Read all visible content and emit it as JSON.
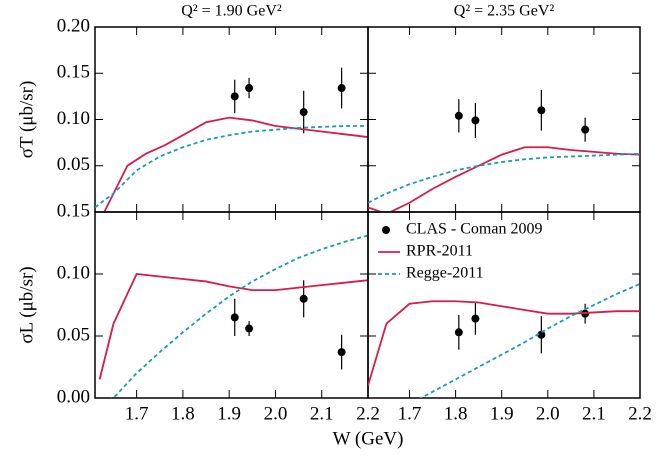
{
  "chart_data": [
    {
      "type": "line",
      "title": "Q² = 1.90 GeV²",
      "y_label": "σT (μb/sr)",
      "xlim": [
        1.61,
        2.2
      ],
      "xticks": [
        1.7,
        1.8,
        1.9,
        2.0,
        2.1,
        2.2
      ],
      "ylim": [
        0,
        0.2
      ],
      "yticks": [
        {
          "value": 0.05,
          "label": "0.05"
        },
        {
          "value": 0.1,
          "label": "0.10"
        },
        {
          "value": 0.15,
          "label": "0.15"
        },
        {
          "value": 0.2,
          "label": "0.20"
        }
      ],
      "series": [
        {
          "type": "scatter",
          "color": "#000000",
          "x": [
            1.912,
            1.943,
            2.061,
            2.143
          ],
          "values": [
            0.125,
            0.134,
            0.108,
            0.134
          ],
          "errors": [
            0.018,
            0.011,
            0.023,
            0.022
          ]
        },
        {
          "type": "line",
          "color": "#d81b4a",
          "x": [
            1.63,
            1.65,
            1.68,
            1.72,
            1.76,
            1.8,
            1.85,
            1.9,
            1.95,
            2.0,
            2.05,
            2.1,
            2.15,
            2.2
          ],
          "values": [
            0.0,
            0.02,
            0.05,
            0.063,
            0.072,
            0.083,
            0.097,
            0.102,
            0.099,
            0.093,
            0.09,
            0.087,
            0.084,
            0.081
          ]
        },
        {
          "type": "line",
          "dashed": true,
          "color": "#1a9bb0",
          "x": [
            1.61,
            1.65,
            1.7,
            1.75,
            1.8,
            1.85,
            1.9,
            1.95,
            2.0,
            2.05,
            2.1,
            2.15,
            2.2
          ],
          "values": [
            0.005,
            0.02,
            0.045,
            0.06,
            0.07,
            0.078,
            0.083,
            0.087,
            0.089,
            0.091,
            0.092,
            0.093,
            0.093
          ]
        }
      ]
    },
    {
      "type": "line",
      "title": "Q² = 2.35 GeV²",
      "xlim": [
        1.61,
        2.2
      ],
      "xticks": [
        1.7,
        1.8,
        1.9,
        2.0,
        2.1,
        2.2
      ],
      "ylim": [
        0,
        0.2
      ],
      "yticks": [
        0.05,
        0.1,
        0.15,
        0.2
      ],
      "series": [
        {
          "type": "scatter",
          "color": "#000000",
          "x": [
            1.807,
            1.843,
            1.986,
            2.081
          ],
          "values": [
            0.104,
            0.099,
            0.11,
            0.089
          ],
          "errors": [
            0.018,
            0.019,
            0.022,
            0.013
          ]
        },
        {
          "type": "line",
          "color": "#d81b4a",
          "x": [
            1.61,
            1.65,
            1.7,
            1.75,
            1.8,
            1.85,
            1.9,
            1.95,
            2.0,
            2.05,
            2.1,
            2.15,
            2.2
          ],
          "values": [
            0.005,
            -0.002,
            0.01,
            0.025,
            0.038,
            0.05,
            0.062,
            0.07,
            0.07,
            0.067,
            0.065,
            0.063,
            0.062
          ]
        },
        {
          "type": "line",
          "dashed": true,
          "color": "#1a9bb0",
          "x": [
            1.61,
            1.65,
            1.7,
            1.75,
            1.8,
            1.85,
            1.9,
            1.95,
            2.0,
            2.05,
            2.1,
            2.15,
            2.2
          ],
          "values": [
            0.01,
            0.02,
            0.03,
            0.038,
            0.045,
            0.05,
            0.054,
            0.057,
            0.059,
            0.06,
            0.061,
            0.062,
            0.063
          ]
        }
      ]
    },
    {
      "type": "line",
      "y_label": "σL (μb/sr)",
      "x_label": "W (GeV)",
      "xlim": [
        1.61,
        2.2
      ],
      "xticks": [
        1.7,
        1.8,
        1.9,
        {
          "value": 2.0,
          "label": "2.0"
        },
        2.1,
        2.2
      ],
      "ylim": [
        0,
        0.15
      ],
      "yticks": [
        {
          "value": 0,
          "label": "0.00"
        },
        {
          "value": 0.05,
          "label": "0.05"
        },
        {
          "value": 0.1,
          "label": "0.10"
        },
        {
          "value": 0.15,
          "label": "0.15"
        }
      ],
      "series": [
        {
          "type": "scatter",
          "color": "#000000",
          "x": [
            1.912,
            1.943,
            2.061,
            2.143
          ],
          "values": [
            0.065,
            0.056,
            0.08,
            0.037
          ],
          "errors": [
            0.015,
            0.006,
            0.015,
            0.014
          ]
        },
        {
          "type": "line",
          "color": "#d81b4a",
          "x": [
            1.62,
            1.65,
            1.7,
            1.75,
            1.8,
            1.85,
            1.9,
            1.95,
            2.0,
            2.05,
            2.1,
            2.15,
            2.2
          ],
          "values": [
            0.015,
            0.06,
            0.1,
            0.098,
            0.096,
            0.094,
            0.09,
            0.087,
            0.087,
            0.089,
            0.091,
            0.093,
            0.095
          ]
        },
        {
          "type": "line",
          "dashed": true,
          "color": "#1a9bb0",
          "x": [
            1.61,
            1.65,
            1.7,
            1.75,
            1.8,
            1.85,
            1.9,
            1.95,
            2.0,
            2.05,
            2.1,
            2.15,
            2.2
          ],
          "values": [
            -0.005,
            0.0,
            0.02,
            0.037,
            0.053,
            0.068,
            0.082,
            0.094,
            0.104,
            0.113,
            0.12,
            0.126,
            0.131
          ]
        }
      ]
    },
    {
      "type": "line",
      "legend": "upper left",
      "xlim": [
        1.61,
        2.2
      ],
      "xticks": [
        1.7,
        1.8,
        1.9,
        {
          "value": 2.0,
          "label": "2.0"
        },
        2.1,
        2.2
      ],
      "ylim": [
        0,
        0.15
      ],
      "yticks": [
        0,
        0.05,
        0.1,
        0.15
      ],
      "series": [
        {
          "name": "CLAS - Coman 2009",
          "type": "scatter",
          "color": "#000000",
          "x": [
            1.807,
            1.843,
            1.986,
            2.081
          ],
          "values": [
            0.053,
            0.064,
            0.051,
            0.068
          ],
          "errors": [
            0.014,
            0.013,
            0.015,
            0.008
          ]
        },
        {
          "name": "RPR-2011",
          "type": "line",
          "color": "#d81b4a",
          "x": [
            1.61,
            1.65,
            1.7,
            1.75,
            1.8,
            1.85,
            1.9,
            1.95,
            2.0,
            2.05,
            2.1,
            2.15,
            2.2
          ],
          "values": [
            0.01,
            0.06,
            0.076,
            0.078,
            0.078,
            0.077,
            0.074,
            0.071,
            0.068,
            0.068,
            0.069,
            0.07,
            0.07
          ]
        },
        {
          "name": "Regge-2011",
          "type": "line",
          "dashed": true,
          "color": "#1a9bb0",
          "x": [
            1.61,
            1.65,
            1.7,
            1.75,
            1.8,
            1.85,
            1.9,
            1.95,
            2.0,
            2.05,
            2.1,
            2.15,
            2.2
          ],
          "values": [
            -0.02,
            -0.015,
            -0.005,
            0.005,
            0.015,
            0.025,
            0.035,
            0.045,
            0.056,
            0.066,
            0.075,
            0.084,
            0.092
          ]
        }
      ]
    }
  ]
}
